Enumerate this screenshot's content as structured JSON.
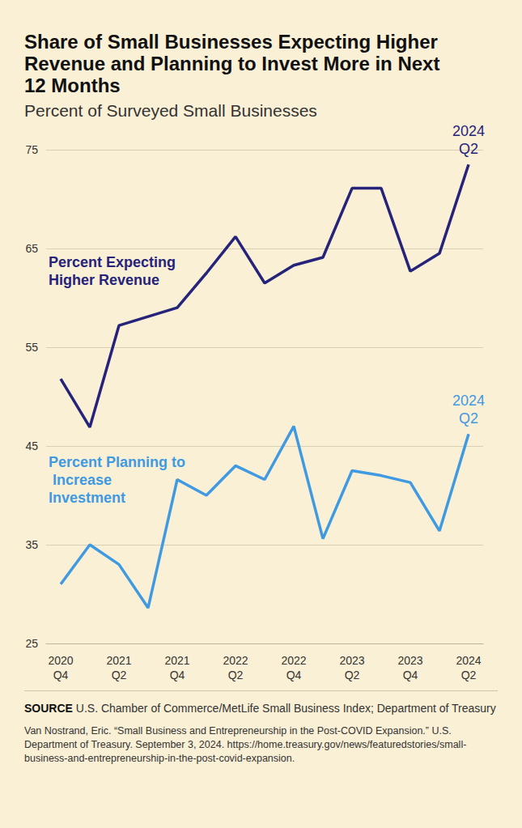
{
  "chart_data": {
    "type": "line",
    "title": "Share of Small Businesses Expecting Higher Revenue and Planning to Invest More in Next 12 Months",
    "subtitle": "Percent of Surveyed Small Businesses",
    "categories": [
      "2020 Q4",
      null,
      "2021 Q2",
      null,
      "2021 Q4",
      null,
      "2022 Q2",
      null,
      "2022 Q4",
      null,
      "2023 Q2",
      null,
      "2023 Q4",
      null,
      "2024 Q2"
    ],
    "series": [
      {
        "name": "Percent Expecting Higher Revenue",
        "color": "#25237a",
        "values": [
          51.8,
          46.9,
          57.2,
          58.1,
          59.0,
          62.5,
          66.2,
          61.5,
          63.3,
          64.1,
          71.1,
          71.1,
          62.7,
          64.5,
          73.5
        ]
      },
      {
        "name": "Percent Planning to Increase Investment",
        "color": "#3f9ae2",
        "values": [
          31.0,
          35.0,
          33.0,
          28.6,
          41.6,
          40.0,
          43.0,
          41.6,
          47.0,
          35.6,
          42.5,
          42.0,
          41.3,
          36.4,
          46.2
        ]
      }
    ],
    "ylim": [
      25,
      75
    ],
    "yticks": [
      25,
      35,
      45,
      55,
      65,
      75
    ],
    "grid": true,
    "source_label": "SOURCE",
    "source": "U.S. Chamber of Commerce/MetLife Small Business Index; Department of Treasury",
    "citation": "Van Nostrand, Eric. “Small Business and Entrepreneurship in the Post-COVID Expansion.” U.S. Department of Treasury. September 3, 2024. https://home.treasury.gov/news/featuredstories/small-business-and-entrepreneurship-in-the-post-covid-expansion."
  }
}
